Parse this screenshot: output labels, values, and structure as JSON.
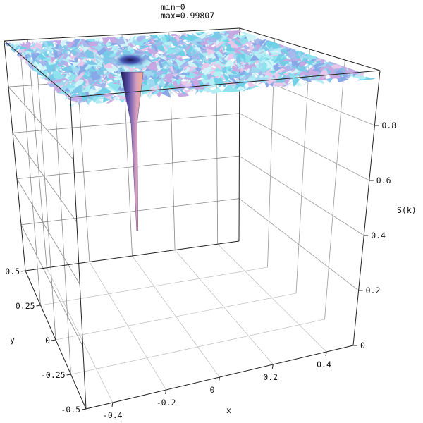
{
  "chart_data": {
    "type": "surface",
    "title_lines": [
      "min=0",
      "max=0.99807"
    ],
    "xlabel": "x",
    "ylabel": "y",
    "zlabel": "S(k)",
    "xlim": [
      -0.5,
      0.5
    ],
    "ylim": [
      -0.5,
      0.5
    ],
    "zlim": [
      0,
      1
    ],
    "x_ticks": [
      -0.4,
      -0.2,
      0,
      0.2,
      0.4
    ],
    "x_tick_labels": [
      "-0.4",
      "-0.2",
      "0",
      "0.2",
      "0.4"
    ],
    "y_ticks": [
      0.5,
      0.25,
      0,
      -0.25,
      -0.5
    ],
    "y_tick_labels": [
      "0.5",
      "0.25",
      "0",
      "-0.25",
      "-0.5"
    ],
    "z_ticks": [
      0,
      0.2,
      0.4,
      0.6,
      0.8
    ],
    "z_tick_labels": [
      "0",
      "0.2",
      "0.4",
      "0.6",
      "0.8"
    ],
    "z_min": 0,
    "z_max": 0.99807,
    "surface_description": "Flat noisy plateau near S(k)=1 over the x-y domain with a deep narrow dip to 0 near x=-0.1, y=0.15",
    "plateau_value": 1.0,
    "dip": {
      "x": -0.1,
      "y": 0.15,
      "min_value": 0
    },
    "grid": true,
    "colors": {
      "plateau": "#8fe3ef",
      "plateau_alt": "#b9a7e0",
      "dip_dark": "#2a2060",
      "dip_warm": "#f0a890",
      "box": "#222222",
      "grid": "#888888"
    }
  }
}
